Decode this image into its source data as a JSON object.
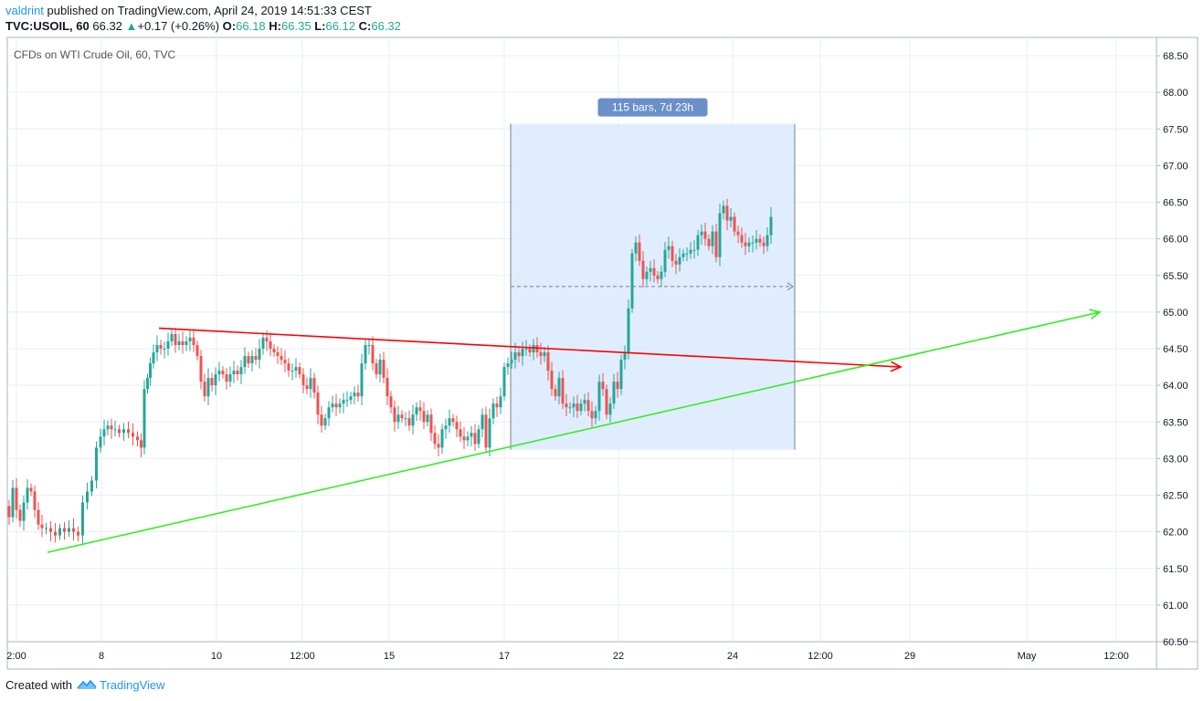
{
  "header": {
    "author": "valdrint",
    "published_text": " published on TradingView.com, April 24, 2019 14:51:33 CEST",
    "symbol": "TVC:USOIL, 60",
    "price": "66.32",
    "change": "+0.17 (+0.26%)",
    "o_label": "O:",
    "o_value": "66.18",
    "h_label": "H:",
    "h_value": "66.35",
    "l_label": "L:",
    "l_value": "66.12",
    "c_label": "C:",
    "c_value": "66.32"
  },
  "footer": {
    "created_with": "Created with",
    "brand": "TradingView"
  },
  "colors": {
    "up": "#26a69a",
    "down": "#ef5350",
    "grid": "#e9eef4",
    "axis": "#787b86",
    "trend_red": "#ff0000",
    "trend_green": "#33ee22",
    "range_fill": "#dbeafe",
    "range_label_bg": "#6a8fc9"
  },
  "chart_data": {
    "type": "candlestick",
    "title": "CFDs on WTI Crude Oil, 60, TVC",
    "y_ticks": [
      "68.50",
      "68.00",
      "67.50",
      "67.00",
      "66.50",
      "66.00",
      "65.50",
      "65.00",
      "64.50",
      "64.00",
      "63.50",
      "63.00",
      "62.50",
      "62.00",
      "61.50",
      "61.00",
      "60.50"
    ],
    "ylim": [
      60.5,
      68.75
    ],
    "x_ticks": [
      "2:00",
      "8",
      "10",
      "12:00",
      "15",
      "17",
      "22",
      "24",
      "12:00",
      "29",
      "May",
      "12:00"
    ],
    "x_range": [
      0,
      1258
    ],
    "series_path": [
      [
        0,
        62.35
      ],
      [
        4,
        62.2
      ],
      [
        8,
        62.6
      ],
      [
        12,
        62.3
      ],
      [
        16,
        62.15
      ],
      [
        20,
        62.4
      ],
      [
        24,
        62.6
      ],
      [
        28,
        62.55
      ],
      [
        32,
        62.3
      ],
      [
        36,
        62.1
      ],
      [
        40,
        62.05
      ],
      [
        45,
        62.05
      ],
      [
        50,
        62.0
      ],
      [
        55,
        61.95
      ],
      [
        60,
        62.05
      ],
      [
        65,
        62.0
      ],
      [
        70,
        62.05
      ],
      [
        75,
        62.0
      ],
      [
        80,
        61.95
      ],
      [
        85,
        62.4
      ],
      [
        90,
        62.55
      ],
      [
        95,
        62.7
      ],
      [
        100,
        63.15
      ],
      [
        104,
        63.3
      ],
      [
        108,
        63.4
      ],
      [
        112,
        63.45
      ],
      [
        116,
        63.4
      ],
      [
        120,
        63.4
      ],
      [
        125,
        63.35
      ],
      [
        130,
        63.4
      ],
      [
        135,
        63.35
      ],
      [
        140,
        63.3
      ],
      [
        145,
        63.25
      ],
      [
        148,
        63.15
      ],
      [
        152,
        63.95
      ],
      [
        155,
        64.1
      ],
      [
        158,
        64.3
      ],
      [
        162,
        64.45
      ],
      [
        166,
        64.55
      ],
      [
        170,
        64.5
      ],
      [
        174,
        64.5
      ],
      [
        178,
        64.6
      ],
      [
        182,
        64.7
      ],
      [
        186,
        64.55
      ],
      [
        190,
        64.6
      ],
      [
        194,
        64.55
      ],
      [
        198,
        64.6
      ],
      [
        202,
        64.65
      ],
      [
        206,
        64.55
      ],
      [
        210,
        64.4
      ],
      [
        214,
        64.05
      ],
      [
        218,
        63.85
      ],
      [
        222,
        64.1
      ],
      [
        226,
        64.0
      ],
      [
        230,
        64.15
      ],
      [
        234,
        64.2
      ],
      [
        238,
        64.15
      ],
      [
        242,
        64.05
      ],
      [
        246,
        64.15
      ],
      [
        250,
        64.2
      ],
      [
        254,
        64.15
      ],
      [
        258,
        64.25
      ],
      [
        262,
        64.4
      ],
      [
        266,
        64.3
      ],
      [
        270,
        64.4
      ],
      [
        274,
        64.35
      ],
      [
        278,
        64.5
      ],
      [
        282,
        64.65
      ],
      [
        286,
        64.6
      ],
      [
        290,
        64.5
      ],
      [
        294,
        64.45
      ],
      [
        298,
        64.4
      ],
      [
        302,
        64.35
      ],
      [
        306,
        64.3
      ],
      [
        310,
        64.2
      ],
      [
        314,
        64.2
      ],
      [
        318,
        64.25
      ],
      [
        322,
        64.15
      ],
      [
        326,
        64.0
      ],
      [
        330,
        63.95
      ],
      [
        334,
        64.1
      ],
      [
        338,
        63.9
      ],
      [
        342,
        63.6
      ],
      [
        346,
        63.45
      ],
      [
        350,
        63.55
      ],
      [
        354,
        63.7
      ],
      [
        358,
        63.75
      ],
      [
        362,
        63.7
      ],
      [
        366,
        63.75
      ],
      [
        370,
        63.8
      ],
      [
        374,
        63.8
      ],
      [
        378,
        63.85
      ],
      [
        382,
        63.9
      ],
      [
        386,
        63.85
      ],
      [
        390,
        64.3
      ],
      [
        394,
        64.55
      ],
      [
        398,
        64.55
      ],
      [
        402,
        64.3
      ],
      [
        406,
        64.15
      ],
      [
        410,
        64.35
      ],
      [
        414,
        64.1
      ],
      [
        418,
        63.85
      ],
      [
        422,
        63.7
      ],
      [
        426,
        63.5
      ],
      [
        430,
        63.6
      ],
      [
        434,
        63.55
      ],
      [
        438,
        63.55
      ],
      [
        442,
        63.45
      ],
      [
        446,
        63.6
      ],
      [
        450,
        63.7
      ],
      [
        454,
        63.65
      ],
      [
        458,
        63.5
      ],
      [
        462,
        63.6
      ],
      [
        466,
        63.35
      ],
      [
        470,
        63.2
      ],
      [
        474,
        63.15
      ],
      [
        478,
        63.4
      ],
      [
        482,
        63.45
      ],
      [
        486,
        63.55
      ],
      [
        490,
        63.5
      ],
      [
        494,
        63.4
      ],
      [
        498,
        63.3
      ],
      [
        502,
        63.25
      ],
      [
        506,
        63.3
      ],
      [
        510,
        63.35
      ],
      [
        514,
        63.2
      ],
      [
        518,
        63.4
      ],
      [
        522,
        63.6
      ],
      [
        526,
        63.15
      ],
      [
        530,
        63.55
      ],
      [
        534,
        63.75
      ],
      [
        538,
        63.7
      ],
      [
        542,
        63.85
      ],
      [
        546,
        64.25
      ],
      [
        550,
        64.3
      ],
      [
        554,
        64.35
      ],
      [
        558,
        64.45
      ],
      [
        562,
        64.4
      ],
      [
        566,
        64.5
      ],
      [
        570,
        64.5
      ],
      [
        574,
        64.45
      ],
      [
        578,
        64.55
      ],
      [
        582,
        64.45
      ],
      [
        586,
        64.4
      ],
      [
        590,
        64.45
      ],
      [
        594,
        64.2
      ],
      [
        598,
        63.95
      ],
      [
        602,
        63.85
      ],
      [
        606,
        64.1
      ],
      [
        610,
        63.75
      ],
      [
        614,
        63.7
      ],
      [
        618,
        63.7
      ],
      [
        622,
        63.75
      ],
      [
        626,
        63.65
      ],
      [
        630,
        63.75
      ],
      [
        634,
        63.8
      ],
      [
        638,
        63.65
      ],
      [
        642,
        63.55
      ],
      [
        646,
        63.65
      ],
      [
        650,
        64.05
      ],
      [
        654,
        63.95
      ],
      [
        658,
        63.6
      ],
      [
        662,
        63.75
      ],
      [
        666,
        64.05
      ],
      [
        670,
        63.95
      ],
      [
        674,
        64.35
      ],
      [
        678,
        64.45
      ],
      [
        682,
        65.05
      ],
      [
        686,
        65.8
      ],
      [
        690,
        65.95
      ],
      [
        694,
        65.7
      ],
      [
        698,
        65.45
      ],
      [
        702,
        65.55
      ],
      [
        706,
        65.6
      ],
      [
        710,
        65.5
      ],
      [
        714,
        65.45
      ],
      [
        718,
        65.55
      ],
      [
        722,
        65.85
      ],
      [
        726,
        65.9
      ],
      [
        730,
        65.7
      ],
      [
        734,
        65.65
      ],
      [
        738,
        65.75
      ],
      [
        742,
        65.8
      ],
      [
        746,
        65.8
      ],
      [
        750,
        65.85
      ],
      [
        754,
        65.85
      ],
      [
        758,
        66.05
      ],
      [
        762,
        66.1
      ],
      [
        766,
        66.0
      ],
      [
        770,
        65.9
      ],
      [
        774,
        66.1
      ],
      [
        778,
        65.75
      ],
      [
        782,
        66.35
      ],
      [
        786,
        66.45
      ],
      [
        790,
        66.25
      ],
      [
        794,
        66.3
      ],
      [
        798,
        66.1
      ],
      [
        802,
        66.05
      ],
      [
        806,
        65.95
      ],
      [
        810,
        65.9
      ],
      [
        814,
        65.95
      ],
      [
        818,
        65.95
      ],
      [
        822,
        66.0
      ],
      [
        826,
        65.95
      ],
      [
        830,
        65.9
      ],
      [
        834,
        66.05
      ],
      [
        838,
        66.3
      ]
    ],
    "annotations": {
      "resistance_line": {
        "x1": 166,
        "y1": 64.78,
        "x2": 978,
        "y2": 64.25
      },
      "support_line": {
        "x1": 44,
        "y1": 61.72,
        "x2": 1196,
        "y2": 65.0
      },
      "measure_box": {
        "x1": 551,
        "x2": 862,
        "y_top": 67.57,
        "y_bottom": 63.12,
        "mid": 65.35,
        "label": "115 bars, 7d 23h"
      }
    }
  }
}
